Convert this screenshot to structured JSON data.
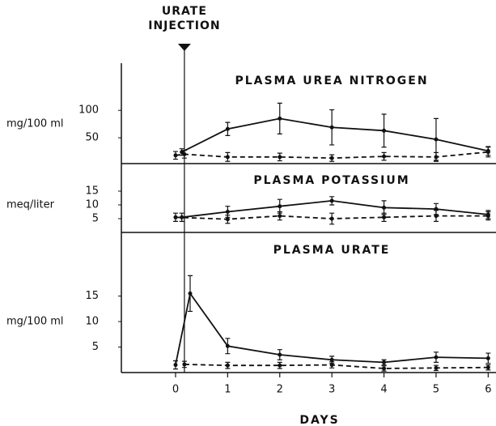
{
  "chart_data": [
    {
      "type": "line",
      "title": "PLASMA UREA NITROGEN",
      "ylabel": "mg/100 ml",
      "annotation": {
        "lines": [
          "URATE",
          "INJECTION"
        ],
        "x": 0.17
      },
      "ylim": [
        0,
        180
      ],
      "yticks": [
        50,
        100
      ],
      "series": [
        {
          "style": "solid",
          "color": "#111",
          "x": [
            0.12,
            1,
            2,
            3,
            4,
            5,
            6
          ],
          "values": [
            24,
            66,
            85,
            69,
            63,
            47,
            26
          ],
          "errors": [
            6,
            12,
            28,
            32,
            30,
            38,
            8
          ]
        },
        {
          "style": "dashed",
          "color": "#111",
          "x": [
            0,
            0.17,
            1,
            2,
            3,
            4,
            5,
            6
          ],
          "values": [
            18,
            20,
            15,
            15,
            13,
            16,
            15,
            24
          ],
          "errors": [
            7,
            7,
            8,
            7,
            6,
            7,
            8,
            9
          ]
        }
      ]
    },
    {
      "type": "line",
      "title": "PLASMA POTASSIUM",
      "ylabel": "meq/liter",
      "ylim": [
        0,
        25
      ],
      "yticks": [
        5,
        10,
        15
      ],
      "series": [
        {
          "style": "solid",
          "color": "#111",
          "x": [
            0.12,
            1,
            2,
            3,
            4,
            5,
            6
          ],
          "values": [
            5.5,
            7.5,
            9.5,
            11.5,
            9,
            8.5,
            6.5
          ],
          "errors": [
            1.5,
            2,
            2.5,
            1.5,
            2.5,
            2,
            1.5
          ]
        },
        {
          "style": "dashed",
          "color": "#111",
          "x": [
            0,
            1,
            2,
            3,
            4,
            5,
            6
          ],
          "values": [
            5.5,
            4.8,
            6,
            5,
            5.5,
            6,
            6
          ],
          "errors": [
            1.5,
            1.5,
            1.5,
            2,
            1.5,
            2,
            1.5
          ]
        }
      ]
    },
    {
      "type": "line",
      "title": "PLASMA URATE",
      "ylabel": "mg/100 ml",
      "xlabel": "DAYS",
      "xlim": [
        -1.04,
        6.15
      ],
      "xticks": [
        0,
        1,
        2,
        3,
        4,
        5,
        6
      ],
      "ylim": [
        0,
        27
      ],
      "yticks": [
        5,
        10,
        15
      ],
      "series": [
        {
          "style": "solid",
          "color": "#111",
          "x": [
            0,
            0.28,
            1,
            2,
            3,
            4,
            5,
            6
          ],
          "values": [
            1.5,
            15.5,
            5.2,
            3.5,
            2.5,
            2,
            3,
            2.8
          ],
          "errors": [
            0.8,
            3.5,
            1.5,
            1,
            0.7,
            0.5,
            1,
            1
          ]
        },
        {
          "style": "dashed",
          "color": "#111",
          "x": [
            0.17,
            1,
            2,
            3,
            4,
            5,
            6
          ],
          "values": [
            1.6,
            1.4,
            1.4,
            1.5,
            0.8,
            0.9,
            1.0
          ],
          "errors": [
            0.6,
            0.6,
            0.6,
            0.6,
            0.5,
            0.5,
            0.5
          ]
        }
      ]
    }
  ]
}
